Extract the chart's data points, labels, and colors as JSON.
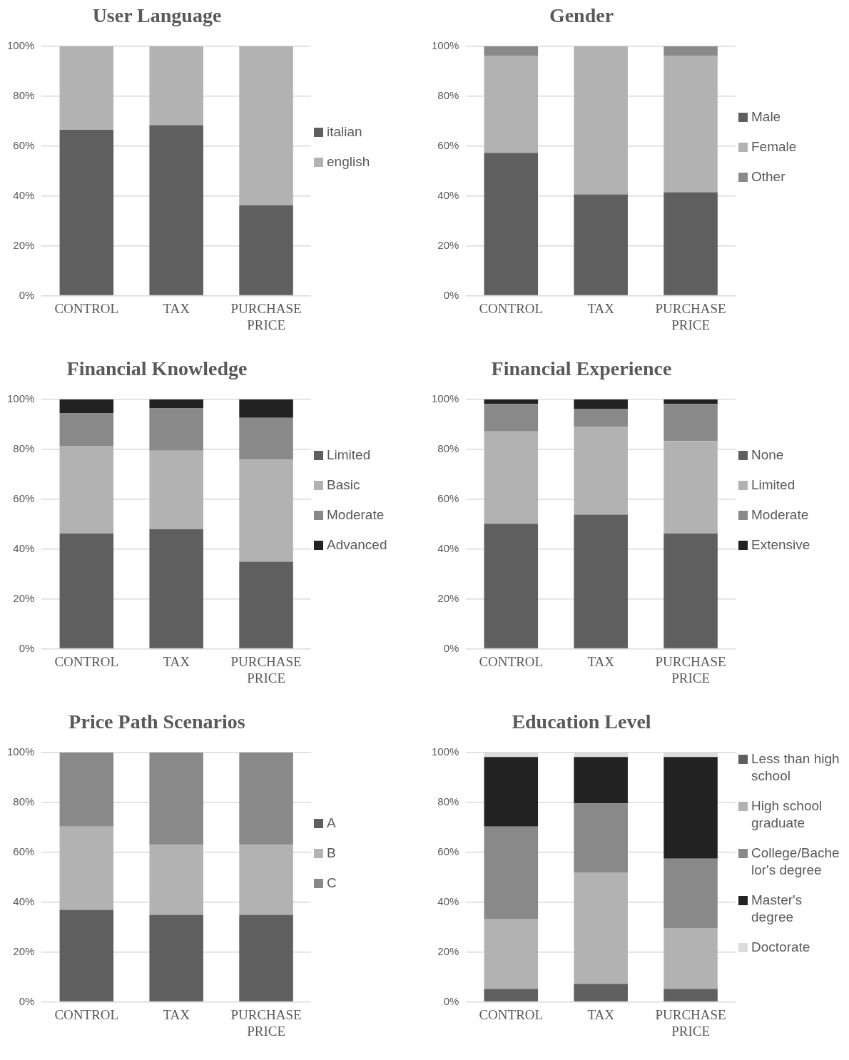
{
  "chart_data": [
    {
      "type": "bar",
      "title": "User Language",
      "stacked": true,
      "categories": [
        "CONTROL",
        "TAX",
        "PURCHASE PRICE"
      ],
      "ylim": [
        0,
        100
      ],
      "yticks": [
        {
          "value": 0,
          "label": "0%"
        },
        {
          "value": 20,
          "label": "20%"
        },
        {
          "value": 40,
          "label": "40%"
        },
        {
          "value": 60,
          "label": "60%"
        },
        {
          "value": 80,
          "label": "80%"
        },
        {
          "value": 100,
          "label": "100%"
        }
      ],
      "grid": "y",
      "legend": "right",
      "series": [
        {
          "name": "italian",
          "color": "#5f5f5f",
          "values": [
            66.5,
            68.4,
            36.2
          ]
        },
        {
          "name": "english",
          "color": "#b2b2b2",
          "values": [
            33.5,
            31.6,
            63.8
          ]
        }
      ]
    },
    {
      "type": "bar",
      "title": "Gender",
      "stacked": true,
      "categories": [
        "CONTROL",
        "TAX",
        "PURCHASE PRICE"
      ],
      "ylim": [
        0,
        100
      ],
      "yticks": [
        {
          "value": 0,
          "label": "0%"
        },
        {
          "value": 20,
          "label": "20%"
        },
        {
          "value": 40,
          "label": "40%"
        },
        {
          "value": 60,
          "label": "60%"
        },
        {
          "value": 80,
          "label": "80%"
        },
        {
          "value": 100,
          "label": "100%"
        }
      ],
      "grid": "y",
      "legend": "right",
      "series": [
        {
          "name": "Male",
          "color": "#5f5f5f",
          "values": [
            57.3,
            40.6,
            41.5
          ]
        },
        {
          "name": "Female",
          "color": "#b2b2b2",
          "values": [
            38.9,
            59.4,
            54.7
          ]
        },
        {
          "name": "Other",
          "color": "#898989",
          "values": [
            3.8,
            0,
            3.8
          ]
        }
      ]
    },
    {
      "type": "bar",
      "title": "Financial Knowledge",
      "stacked": true,
      "categories": [
        "CONTROL",
        "TAX",
        "PURCHASE PRICE"
      ],
      "ylim": [
        0,
        100
      ],
      "yticks": [
        {
          "value": 0,
          "label": "0%"
        },
        {
          "value": 20,
          "label": "20%"
        },
        {
          "value": 40,
          "label": "40%"
        },
        {
          "value": 60,
          "label": "60%"
        },
        {
          "value": 80,
          "label": "80%"
        },
        {
          "value": 100,
          "label": "100%"
        }
      ],
      "grid": "y",
      "legend": "right",
      "series": [
        {
          "name": "Limited",
          "color": "#5f5f5f",
          "values": [
            46.2,
            48.0,
            34.9
          ]
        },
        {
          "name": "Basic",
          "color": "#b2b2b2",
          "values": [
            35.2,
            31.5,
            40.9
          ]
        },
        {
          "name": "Moderate",
          "color": "#898989",
          "values": [
            13.0,
            16.9,
            16.8
          ]
        },
        {
          "name": "Advanced",
          "color": "#222222",
          "values": [
            5.6,
            3.6,
            7.4
          ]
        }
      ]
    },
    {
      "type": "bar",
      "title": "Financial Experience",
      "stacked": true,
      "categories": [
        "CONTROL",
        "TAX",
        "PURCHASE PRICE"
      ],
      "ylim": [
        0,
        100
      ],
      "yticks": [
        {
          "value": 0,
          "label": "0%"
        },
        {
          "value": 20,
          "label": "20%"
        },
        {
          "value": 40,
          "label": "40%"
        },
        {
          "value": 60,
          "label": "60%"
        },
        {
          "value": 80,
          "label": "80%"
        },
        {
          "value": 100,
          "label": "100%"
        }
      ],
      "grid": "y",
      "legend": "right",
      "series": [
        {
          "name": "None",
          "color": "#5f5f5f",
          "values": [
            50.1,
            53.8,
            46.2
          ]
        },
        {
          "name": "Limited",
          "color": "#b2b2b2",
          "values": [
            37.1,
            35.2,
            37.1
          ]
        },
        {
          "name": "Moderate",
          "color": "#898989",
          "values": [
            11.0,
            7.3,
            14.9
          ]
        },
        {
          "name": "Extensive",
          "color": "#222222",
          "values": [
            1.8,
            3.7,
            1.8
          ]
        }
      ]
    },
    {
      "type": "bar",
      "title": "Price Path Scenarios",
      "stacked": true,
      "categories": [
        "CONTROL",
        "TAX",
        "PURCHASE PRICE"
      ],
      "ylim": [
        0,
        100
      ],
      "yticks": [
        {
          "value": 0,
          "label": "0%"
        },
        {
          "value": 20,
          "label": "20%"
        },
        {
          "value": 40,
          "label": "40%"
        },
        {
          "value": 60,
          "label": "60%"
        },
        {
          "value": 80,
          "label": "80%"
        },
        {
          "value": 100,
          "label": "100%"
        }
      ],
      "grid": "y",
      "legend": "right",
      "series": [
        {
          "name": "A",
          "color": "#5f5f5f",
          "values": [
            36.9,
            34.9,
            34.9
          ]
        },
        {
          "name": "B",
          "color": "#b2b2b2",
          "values": [
            33.4,
            28.1,
            28.1
          ]
        },
        {
          "name": "C",
          "color": "#898989",
          "values": [
            29.7,
            37.0,
            37.0
          ]
        }
      ]
    },
    {
      "type": "bar",
      "title": "Education Level",
      "stacked": true,
      "categories": [
        "CONTROL",
        "TAX",
        "PURCHASE PRICE"
      ],
      "ylim": [
        0,
        100
      ],
      "yticks": [
        {
          "value": 0,
          "label": "0%"
        },
        {
          "value": 20,
          "label": "20%"
        },
        {
          "value": 40,
          "label": "40%"
        },
        {
          "value": 60,
          "label": "60%"
        },
        {
          "value": 80,
          "label": "80%"
        },
        {
          "value": 100,
          "label": "100%"
        }
      ],
      "grid": "y",
      "legend": "right",
      "series": [
        {
          "name": "Less than high school",
          "color": "#5f5f5f",
          "values": [
            5.2,
            7.2,
            5.2
          ]
        },
        {
          "name": "High school graduate",
          "color": "#b2b2b2",
          "values": [
            28.1,
            44.7,
            24.4
          ]
        },
        {
          "name": "College/Bachelor's degree",
          "color": "#898989",
          "values": [
            37.0,
            27.7,
            27.8
          ]
        },
        {
          "name": "Master's degree",
          "color": "#222222",
          "values": [
            27.9,
            18.6,
            40.8
          ]
        },
        {
          "name": "Doctorate",
          "color": "#dcdcdc",
          "values": [
            1.8,
            1.8,
            1.8
          ]
        }
      ]
    }
  ]
}
